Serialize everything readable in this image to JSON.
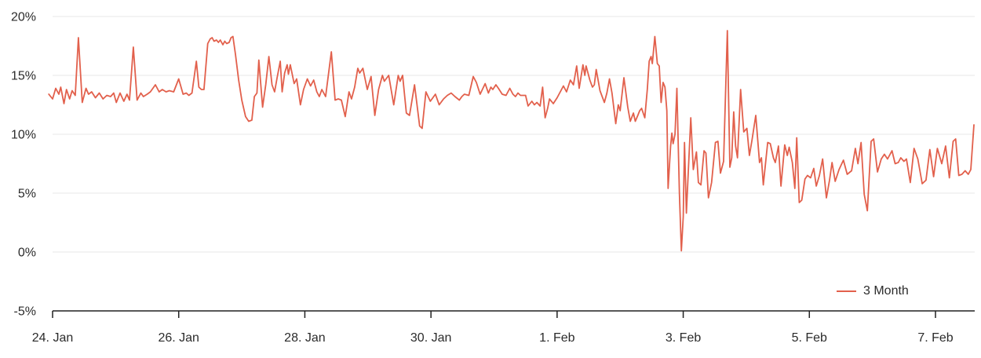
{
  "chart_data": {
    "type": "line",
    "title": "",
    "xlabel": "",
    "ylabel": "",
    "x_unit": "days since 24. Jan",
    "xlim": [
      -0.07,
      14.66
    ],
    "ylim": [
      -5,
      20
    ],
    "grid": "horizontal",
    "legend_position": "bottom-right",
    "y_ticks": [
      {
        "value": 20,
        "label": "20%"
      },
      {
        "value": 15,
        "label": "15%"
      },
      {
        "value": 10,
        "label": "10%"
      },
      {
        "value": 5,
        "label": "5%"
      },
      {
        "value": 0,
        "label": "0%"
      },
      {
        "value": -5,
        "label": "-5%"
      }
    ],
    "x_ticks": [
      {
        "day": 0,
        "label": "24. Jan"
      },
      {
        "day": 2,
        "label": "26. Jan"
      },
      {
        "day": 4,
        "label": "28. Jan"
      },
      {
        "day": 6,
        "label": "30. Jan"
      },
      {
        "day": 8,
        "label": "1. Feb"
      },
      {
        "day": 10,
        "label": "3. Feb"
      },
      {
        "day": 12,
        "label": "5. Feb"
      },
      {
        "day": 14,
        "label": "7. Feb"
      }
    ],
    "series": [
      {
        "name": "3 Month",
        "color": "#e2604c",
        "points": [
          [
            -0.06,
            13.4
          ],
          [
            0.0,
            13.0
          ],
          [
            0.05,
            13.9
          ],
          [
            0.1,
            13.4
          ],
          [
            0.13,
            14.0
          ],
          [
            0.18,
            12.6
          ],
          [
            0.22,
            13.8
          ],
          [
            0.27,
            13.0
          ],
          [
            0.31,
            13.7
          ],
          [
            0.36,
            13.3
          ],
          [
            0.41,
            18.2
          ],
          [
            0.47,
            12.7
          ],
          [
            0.53,
            13.9
          ],
          [
            0.57,
            13.4
          ],
          [
            0.62,
            13.6
          ],
          [
            0.68,
            13.1
          ],
          [
            0.74,
            13.5
          ],
          [
            0.8,
            13.0
          ],
          [
            0.86,
            13.3
          ],
          [
            0.92,
            13.2
          ],
          [
            0.97,
            13.5
          ],
          [
            1.01,
            12.7
          ],
          [
            1.07,
            13.5
          ],
          [
            1.13,
            12.8
          ],
          [
            1.18,
            13.4
          ],
          [
            1.22,
            12.9
          ],
          [
            1.28,
            17.4
          ],
          [
            1.34,
            12.9
          ],
          [
            1.4,
            13.5
          ],
          [
            1.44,
            13.2
          ],
          [
            1.5,
            13.4
          ],
          [
            1.55,
            13.6
          ],
          [
            1.63,
            14.2
          ],
          [
            1.69,
            13.6
          ],
          [
            1.74,
            13.8
          ],
          [
            1.8,
            13.6
          ],
          [
            1.85,
            13.7
          ],
          [
            1.92,
            13.6
          ],
          [
            2.0,
            14.7
          ],
          [
            2.07,
            13.4
          ],
          [
            2.12,
            13.5
          ],
          [
            2.16,
            13.3
          ],
          [
            2.21,
            13.5
          ],
          [
            2.28,
            16.2
          ],
          [
            2.32,
            14.0
          ],
          [
            2.36,
            13.8
          ],
          [
            2.4,
            13.8
          ],
          [
            2.46,
            17.7
          ],
          [
            2.5,
            18.1
          ],
          [
            2.53,
            18.2
          ],
          [
            2.56,
            17.9
          ],
          [
            2.6,
            18.0
          ],
          [
            2.63,
            17.8
          ],
          [
            2.66,
            18.0
          ],
          [
            2.7,
            17.6
          ],
          [
            2.73,
            17.9
          ],
          [
            2.76,
            17.7
          ],
          [
            2.8,
            17.8
          ],
          [
            2.83,
            18.2
          ],
          [
            2.86,
            18.3
          ],
          [
            2.9,
            16.8
          ],
          [
            2.95,
            14.6
          ],
          [
            3.0,
            12.9
          ],
          [
            3.06,
            11.5
          ],
          [
            3.11,
            11.1
          ],
          [
            3.16,
            11.2
          ],
          [
            3.2,
            13.2
          ],
          [
            3.24,
            13.5
          ],
          [
            3.27,
            16.3
          ],
          [
            3.33,
            12.3
          ],
          [
            3.38,
            14.2
          ],
          [
            3.43,
            16.6
          ],
          [
            3.48,
            14.2
          ],
          [
            3.52,
            13.6
          ],
          [
            3.56,
            14.8
          ],
          [
            3.61,
            16.2
          ],
          [
            3.64,
            13.6
          ],
          [
            3.68,
            15.2
          ],
          [
            3.72,
            15.9
          ],
          [
            3.74,
            15.1
          ],
          [
            3.77,
            15.9
          ],
          [
            3.83,
            14.3
          ],
          [
            3.87,
            14.7
          ],
          [
            3.93,
            12.5
          ],
          [
            3.98,
            13.8
          ],
          [
            4.04,
            14.7
          ],
          [
            4.09,
            14.1
          ],
          [
            4.14,
            14.6
          ],
          [
            4.19,
            13.6
          ],
          [
            4.23,
            13.2
          ],
          [
            4.27,
            13.8
          ],
          [
            4.33,
            13.2
          ],
          [
            4.42,
            17.0
          ],
          [
            4.48,
            12.9
          ],
          [
            4.53,
            13.0
          ],
          [
            4.58,
            12.9
          ],
          [
            4.64,
            11.5
          ],
          [
            4.7,
            13.6
          ],
          [
            4.74,
            13.0
          ],
          [
            4.79,
            14.0
          ],
          [
            4.84,
            15.6
          ],
          [
            4.87,
            15.2
          ],
          [
            4.92,
            15.6
          ],
          [
            4.99,
            13.8
          ],
          [
            5.05,
            14.9
          ],
          [
            5.11,
            11.6
          ],
          [
            5.17,
            13.8
          ],
          [
            5.23,
            15.0
          ],
          [
            5.26,
            14.5
          ],
          [
            5.33,
            15.0
          ],
          [
            5.41,
            12.5
          ],
          [
            5.48,
            15.0
          ],
          [
            5.51,
            14.5
          ],
          [
            5.55,
            15.0
          ],
          [
            5.61,
            11.8
          ],
          [
            5.66,
            11.6
          ],
          [
            5.74,
            14.2
          ],
          [
            5.79,
            12.0
          ],
          [
            5.82,
            10.7
          ],
          [
            5.86,
            10.5
          ],
          [
            5.92,
            13.6
          ],
          [
            5.99,
            12.8
          ],
          [
            6.07,
            13.4
          ],
          [
            6.13,
            12.5
          ],
          [
            6.2,
            13.0
          ],
          [
            6.26,
            13.3
          ],
          [
            6.32,
            13.5
          ],
          [
            6.38,
            13.2
          ],
          [
            6.45,
            12.9
          ],
          [
            6.49,
            13.2
          ],
          [
            6.53,
            13.4
          ],
          [
            6.6,
            13.3
          ],
          [
            6.67,
            14.9
          ],
          [
            6.72,
            14.4
          ],
          [
            6.78,
            13.4
          ],
          [
            6.86,
            14.3
          ],
          [
            6.91,
            13.5
          ],
          [
            6.95,
            14.0
          ],
          [
            6.98,
            13.8
          ],
          [
            7.03,
            14.2
          ],
          [
            7.07,
            13.9
          ],
          [
            7.13,
            13.4
          ],
          [
            7.19,
            13.3
          ],
          [
            7.25,
            13.9
          ],
          [
            7.3,
            13.4
          ],
          [
            7.34,
            13.2
          ],
          [
            7.38,
            13.5
          ],
          [
            7.42,
            13.3
          ],
          [
            7.5,
            13.3
          ],
          [
            7.54,
            12.4
          ],
          [
            7.6,
            12.8
          ],
          [
            7.64,
            12.5
          ],
          [
            7.68,
            12.7
          ],
          [
            7.73,
            12.4
          ],
          [
            7.77,
            14.0
          ],
          [
            7.81,
            11.4
          ],
          [
            7.85,
            12.2
          ],
          [
            7.88,
            13.0
          ],
          [
            7.94,
            12.6
          ],
          [
            8.0,
            13.1
          ],
          [
            8.06,
            13.7
          ],
          [
            8.1,
            14.1
          ],
          [
            8.15,
            13.6
          ],
          [
            8.21,
            14.6
          ],
          [
            8.26,
            14.2
          ],
          [
            8.31,
            15.8
          ],
          [
            8.35,
            13.9
          ],
          [
            8.41,
            15.9
          ],
          [
            8.44,
            15.0
          ],
          [
            8.46,
            15.8
          ],
          [
            8.52,
            14.6
          ],
          [
            8.56,
            14.0
          ],
          [
            8.59,
            14.2
          ],
          [
            8.62,
            15.5
          ],
          [
            8.68,
            13.7
          ],
          [
            8.75,
            12.7
          ],
          [
            8.79,
            13.5
          ],
          [
            8.83,
            14.7
          ],
          [
            8.87,
            13.5
          ],
          [
            8.93,
            10.9
          ],
          [
            8.97,
            12.5
          ],
          [
            9.0,
            12.0
          ],
          [
            9.06,
            14.8
          ],
          [
            9.12,
            12.3
          ],
          [
            9.16,
            11.1
          ],
          [
            9.21,
            11.8
          ],
          [
            9.24,
            11.1
          ],
          [
            9.28,
            11.6
          ],
          [
            9.31,
            12.0
          ],
          [
            9.34,
            12.2
          ],
          [
            9.39,
            11.4
          ],
          [
            9.43,
            13.8
          ],
          [
            9.46,
            16.2
          ],
          [
            9.49,
            16.6
          ],
          [
            9.51,
            16.0
          ],
          [
            9.55,
            18.3
          ],
          [
            9.59,
            16.0
          ],
          [
            9.62,
            15.8
          ],
          [
            9.65,
            12.7
          ],
          [
            9.68,
            14.4
          ],
          [
            9.71,
            14.0
          ],
          [
            9.74,
            12.0
          ],
          [
            9.76,
            5.4
          ],
          [
            9.8,
            9.0
          ],
          [
            9.82,
            10.1
          ],
          [
            9.84,
            9.2
          ],
          [
            9.87,
            10.0
          ],
          [
            9.9,
            13.9
          ],
          [
            9.94,
            5.0
          ],
          [
            9.97,
            0.1
          ],
          [
            10.0,
            3.0
          ],
          [
            10.02,
            9.3
          ],
          [
            10.05,
            3.3
          ],
          [
            10.12,
            11.4
          ],
          [
            10.16,
            7.0
          ],
          [
            10.21,
            8.5
          ],
          [
            10.24,
            5.9
          ],
          [
            10.28,
            5.7
          ],
          [
            10.33,
            8.6
          ],
          [
            10.36,
            8.4
          ],
          [
            10.4,
            4.6
          ],
          [
            10.45,
            5.9
          ],
          [
            10.51,
            9.3
          ],
          [
            10.55,
            9.4
          ],
          [
            10.59,
            6.7
          ],
          [
            10.64,
            7.7
          ],
          [
            10.7,
            18.8
          ],
          [
            10.74,
            7.2
          ],
          [
            10.77,
            8.0
          ],
          [
            10.8,
            11.9
          ],
          [
            10.83,
            9.0
          ],
          [
            10.86,
            8.0
          ],
          [
            10.91,
            13.8
          ],
          [
            10.96,
            10.2
          ],
          [
            11.01,
            10.5
          ],
          [
            11.05,
            8.2
          ],
          [
            11.09,
            9.5
          ],
          [
            11.15,
            11.6
          ],
          [
            11.21,
            7.6
          ],
          [
            11.24,
            8.0
          ],
          [
            11.27,
            5.7
          ],
          [
            11.34,
            9.3
          ],
          [
            11.38,
            9.2
          ],
          [
            11.43,
            8.0
          ],
          [
            11.46,
            7.6
          ],
          [
            11.51,
            9.0
          ],
          [
            11.55,
            5.6
          ],
          [
            11.61,
            9.1
          ],
          [
            11.65,
            8.2
          ],
          [
            11.68,
            8.9
          ],
          [
            11.73,
            7.6
          ],
          [
            11.77,
            5.4
          ],
          [
            11.8,
            9.7
          ],
          [
            11.84,
            4.2
          ],
          [
            11.88,
            4.4
          ],
          [
            11.93,
            6.2
          ],
          [
            11.97,
            6.5
          ],
          [
            12.02,
            6.3
          ],
          [
            12.07,
            7.1
          ],
          [
            12.11,
            5.6
          ],
          [
            12.16,
            6.5
          ],
          [
            12.21,
            7.9
          ],
          [
            12.27,
            4.6
          ],
          [
            12.32,
            6.1
          ],
          [
            12.36,
            7.6
          ],
          [
            12.41,
            6.0
          ],
          [
            12.47,
            7.0
          ],
          [
            12.54,
            7.8
          ],
          [
            12.6,
            6.6
          ],
          [
            12.67,
            6.9
          ],
          [
            12.73,
            8.8
          ],
          [
            12.77,
            7.5
          ],
          [
            12.82,
            9.3
          ],
          [
            12.87,
            4.9
          ],
          [
            12.92,
            3.5
          ],
          [
            12.98,
            9.4
          ],
          [
            13.02,
            9.6
          ],
          [
            13.08,
            6.8
          ],
          [
            13.14,
            7.9
          ],
          [
            13.19,
            8.3
          ],
          [
            13.24,
            7.9
          ],
          [
            13.31,
            8.6
          ],
          [
            13.36,
            7.5
          ],
          [
            13.41,
            7.6
          ],
          [
            13.45,
            8.0
          ],
          [
            13.5,
            7.7
          ],
          [
            13.54,
            7.9
          ],
          [
            13.6,
            5.9
          ],
          [
            13.66,
            8.8
          ],
          [
            13.72,
            7.9
          ],
          [
            13.79,
            5.8
          ],
          [
            13.85,
            6.1
          ],
          [
            13.91,
            8.7
          ],
          [
            13.97,
            6.4
          ],
          [
            14.03,
            8.8
          ],
          [
            14.1,
            7.5
          ],
          [
            14.16,
            9.0
          ],
          [
            14.22,
            6.3
          ],
          [
            14.28,
            9.4
          ],
          [
            14.32,
            9.6
          ],
          [
            14.37,
            6.5
          ],
          [
            14.42,
            6.6
          ],
          [
            14.47,
            6.9
          ],
          [
            14.52,
            6.6
          ],
          [
            14.56,
            7.0
          ],
          [
            14.61,
            10.8
          ]
        ]
      }
    ]
  },
  "legend": {
    "items": [
      {
        "label": "3 Month",
        "color": "#e2604c"
      }
    ]
  },
  "colors": {
    "background": "#ffffff",
    "series_line": "#e2604c",
    "gridline": "#e7e7e7",
    "axis_line": "#212121",
    "tick_label": "#2b2b2b"
  }
}
